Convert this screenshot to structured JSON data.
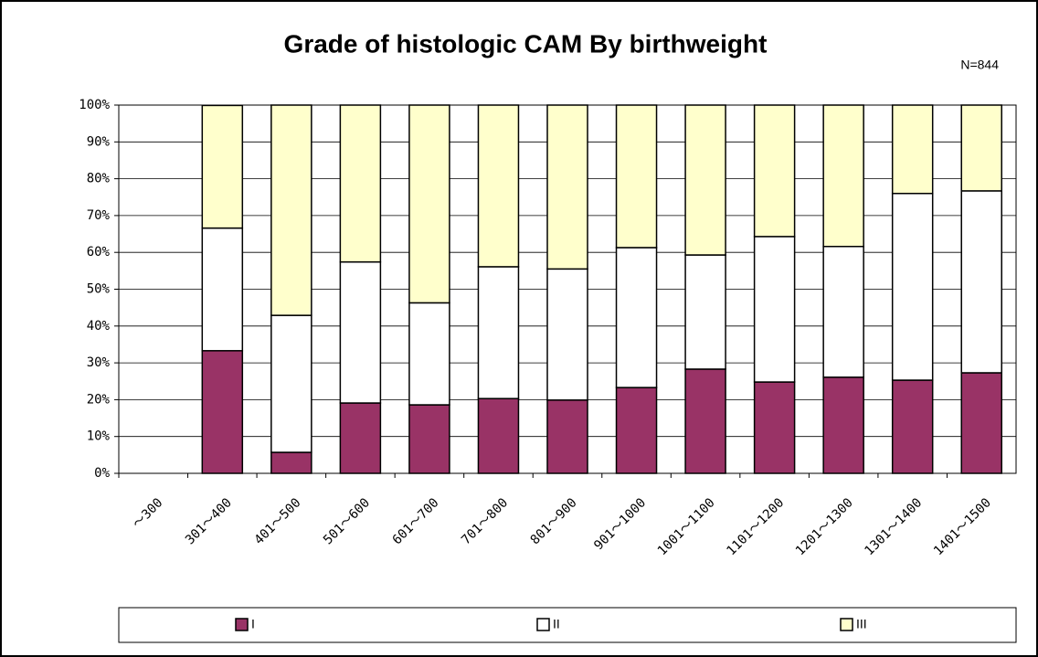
{
  "chart_data": {
    "type": "stacked_bar",
    "title": "Grade of histologic CAM By birthweight",
    "subtitle": "N=844",
    "categories": [
      "〜300",
      "301〜400",
      "401〜500",
      "501〜600",
      "601〜700",
      "701〜800",
      "801〜900",
      "901〜1000",
      "1001〜1100",
      "1101〜1200",
      "1201〜1300",
      "1301〜1400",
      "1401〜1500"
    ],
    "series": [
      {
        "name": "I",
        "color": "#993366",
        "values": [
          null,
          33.3,
          5.7,
          19.1,
          18.6,
          20.3,
          19.9,
          23.3,
          28.3,
          24.8,
          26.1,
          25.3,
          27.3
        ]
      },
      {
        "name": "II",
        "color": "#ffffff",
        "values": [
          null,
          33.3,
          37.2,
          38.3,
          27.7,
          35.8,
          35.6,
          38.0,
          31.0,
          39.5,
          35.5,
          50.7,
          49.4
        ]
      },
      {
        "name": "III",
        "color": "#ffffcc",
        "values": [
          null,
          33.3,
          57.1,
          42.6,
          53.7,
          43.9,
          44.5,
          38.7,
          40.7,
          35.7,
          38.4,
          24.0,
          23.3
        ]
      }
    ],
    "ylim": [
      0,
      100
    ],
    "yticks": [
      {
        "value": 0,
        "label": "0%"
      },
      {
        "value": 10,
        "label": "10%"
      },
      {
        "value": 20,
        "label": "20%"
      },
      {
        "value": 30,
        "label": "30%"
      },
      {
        "value": 40,
        "label": "40%"
      },
      {
        "value": 50,
        "label": "50%"
      },
      {
        "value": 60,
        "label": "60%"
      },
      {
        "value": 70,
        "label": "70%"
      },
      {
        "value": 80,
        "label": "80%"
      },
      {
        "value": 90,
        "label": "90%"
      },
      {
        "value": 100,
        "label": "100%"
      }
    ],
    "grid": true,
    "legend": "bottom"
  }
}
